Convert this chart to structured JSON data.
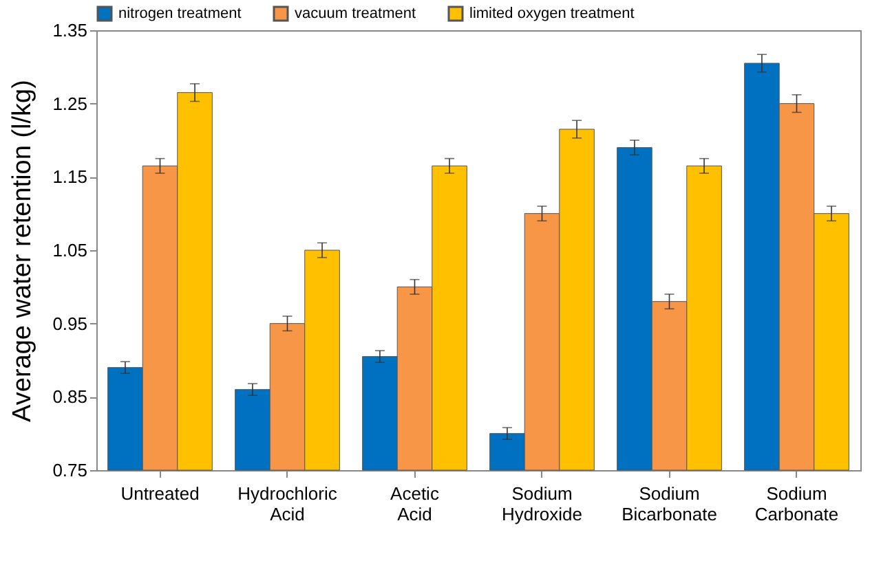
{
  "chart_data": {
    "type": "bar",
    "ylabel": "Average water retention (l/kg)",
    "categories": [
      "Untreated",
      "Hydrochloric Acid",
      "Acetic Acid",
      "Sodium Hydroxide",
      "Sodium Bicarbonate",
      "Sodium Carbonate"
    ],
    "series": [
      {
        "name": "nitrogen treatment",
        "color": "#0070c0",
        "values": [
          0.89,
          0.86,
          0.905,
          0.8,
          1.19,
          1.305
        ],
        "errors": [
          0.008,
          0.008,
          0.008,
          0.008,
          0.01,
          0.012
        ]
      },
      {
        "name": "vacuum treatment",
        "color": "#f79646",
        "values": [
          1.165,
          0.95,
          1.0,
          1.1,
          0.98,
          1.25
        ],
        "errors": [
          0.01,
          0.01,
          0.01,
          0.01,
          0.01,
          0.012
        ]
      },
      {
        "name": "limited oxygen treatment",
        "color": "#ffc000",
        "values": [
          1.265,
          1.05,
          1.165,
          1.215,
          1.165,
          1.1
        ],
        "errors": [
          0.012,
          0.01,
          0.01,
          0.012,
          0.01,
          0.01
        ]
      }
    ],
    "ylim": [
      0.75,
      1.35
    ],
    "yticks": [
      0.75,
      0.85,
      0.95,
      1.05,
      1.15,
      1.25,
      1.35
    ],
    "grid": false,
    "legend": "top"
  }
}
